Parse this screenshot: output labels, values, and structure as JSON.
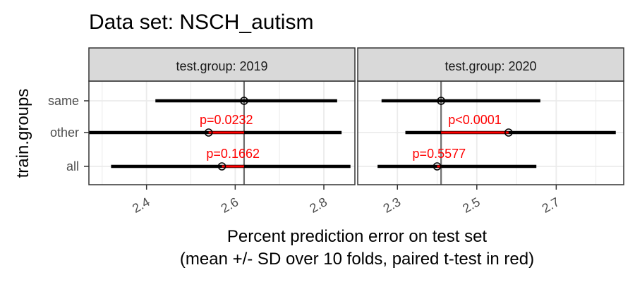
{
  "chart_data": {
    "type": "dot-errorbar-faceted",
    "title": "Data set: NSCH_autism",
    "xlabel_line1": "Percent prediction error on test set",
    "xlabel_line2": "(mean +/- SD over 10 folds, paired t-test in red)",
    "ylabel": "train.groups",
    "categories": [
      "same",
      "other",
      "all"
    ],
    "colors": {
      "interval": "#000000",
      "difference": "#ff0000",
      "reference_line": "#6e6e6e",
      "strip_fill": "#d9d9d9",
      "grid": "#ebebeb"
    },
    "panels": [
      {
        "strip": "test.group: 2019",
        "xlim": [
          2.27,
          2.87
        ],
        "xticks": [
          2.4,
          2.6,
          2.8
        ],
        "xtick_labels": [
          "2.4",
          "2.6",
          "2.8"
        ],
        "reference": 2.62,
        "rows": [
          {
            "group": "same",
            "mean": 2.62,
            "lo": 2.42,
            "hi": 2.83
          },
          {
            "group": "other",
            "mean": 2.54,
            "lo": 2.27,
            "hi": 2.84,
            "pvalue": "p=0.0232"
          },
          {
            "group": "all",
            "mean": 2.57,
            "lo": 2.32,
            "hi": 2.86,
            "pvalue": "p=0.1662"
          }
        ]
      },
      {
        "strip": "test.group: 2020",
        "xlim": [
          2.2,
          2.87
        ],
        "xticks": [
          2.3,
          2.5,
          2.7
        ],
        "xtick_labels": [
          "2.3",
          "2.5",
          "2.7"
        ],
        "reference": 2.41,
        "rows": [
          {
            "group": "same",
            "mean": 2.41,
            "lo": 2.26,
            "hi": 2.66
          },
          {
            "group": "other",
            "mean": 2.58,
            "lo": 2.32,
            "hi": 2.85,
            "pvalue": "p<0.0001"
          },
          {
            "group": "all",
            "mean": 2.4,
            "lo": 2.25,
            "hi": 2.65,
            "pvalue": "p=0.5577"
          }
        ]
      }
    ]
  }
}
